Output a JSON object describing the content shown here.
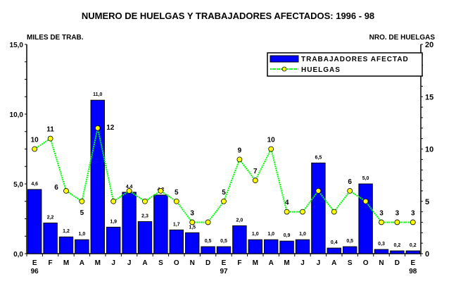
{
  "chart_data": {
    "type": "bar",
    "title": "NUMERO DE HUELGAS Y TRABAJADORES AFECTADOS: 1996 - 98",
    "ylabel": "MILES DE TRAB.",
    "y2label": "NRO. DE HUELGAS",
    "ylim": [
      0,
      15
    ],
    "y2lim": [
      0,
      20
    ],
    "yticks": [
      "0,0",
      "5,0",
      "10,0",
      "15,0"
    ],
    "y2ticks": [
      "0",
      "5",
      "10",
      "15",
      "20"
    ],
    "categories": [
      "E",
      "F",
      "M",
      "A",
      "M",
      "J",
      "J",
      "A",
      "S",
      "O",
      "N",
      "D",
      "E",
      "F",
      "M",
      "A",
      "M",
      "J",
      "J",
      "A",
      "S",
      "O",
      "N",
      "D",
      "E"
    ],
    "year_labels": [
      {
        "index": 0,
        "label": "96"
      },
      {
        "index": 12,
        "label": "97"
      },
      {
        "index": 24,
        "label": "98"
      }
    ],
    "legend_position": "top-right",
    "series": [
      {
        "name": "TRABAJADORES AFECTAD",
        "type": "bar",
        "axis": "left",
        "color": "#0000ff",
        "values": [
          4.6,
          2.2,
          1.2,
          1.0,
          11.0,
          1.9,
          4.4,
          2.3,
          4.2,
          1.7,
          1.5,
          0.5,
          0.5,
          2.0,
          1.0,
          1.0,
          0.9,
          1.0,
          6.5,
          0.4,
          0.5,
          5.0,
          0.3,
          0.2,
          0.2
        ],
        "labels": [
          "4,6",
          "2,2",
          "1,2",
          "1,0",
          "11,0",
          "1,9",
          "4,4",
          "2,3",
          "4,2",
          "1,7",
          "1,5",
          "0,5",
          "0,5",
          "2,0",
          "1,0",
          "1,0",
          "0,9",
          "1,0",
          "6,5",
          "0,4",
          "0,5",
          "5,0",
          "0,3",
          "0,2",
          "0,2"
        ]
      },
      {
        "name": "HUELGAS",
        "type": "line",
        "axis": "right",
        "color": "#00ff00",
        "marker_color": "#ffff00",
        "values": [
          10,
          11,
          6,
          5,
          12,
          5,
          6,
          5,
          6,
          5,
          3,
          3,
          5,
          9,
          7,
          10,
          4,
          4,
          6,
          4,
          6,
          5,
          3,
          3,
          3
        ],
        "labels": [
          "10",
          "11",
          "6",
          "5",
          "12",
          null,
          null,
          null,
          null,
          "5",
          "3",
          null,
          "5",
          "9",
          "7",
          "10",
          "4",
          null,
          null,
          null,
          "6",
          null,
          "3",
          "3",
          "3"
        ]
      }
    ]
  }
}
